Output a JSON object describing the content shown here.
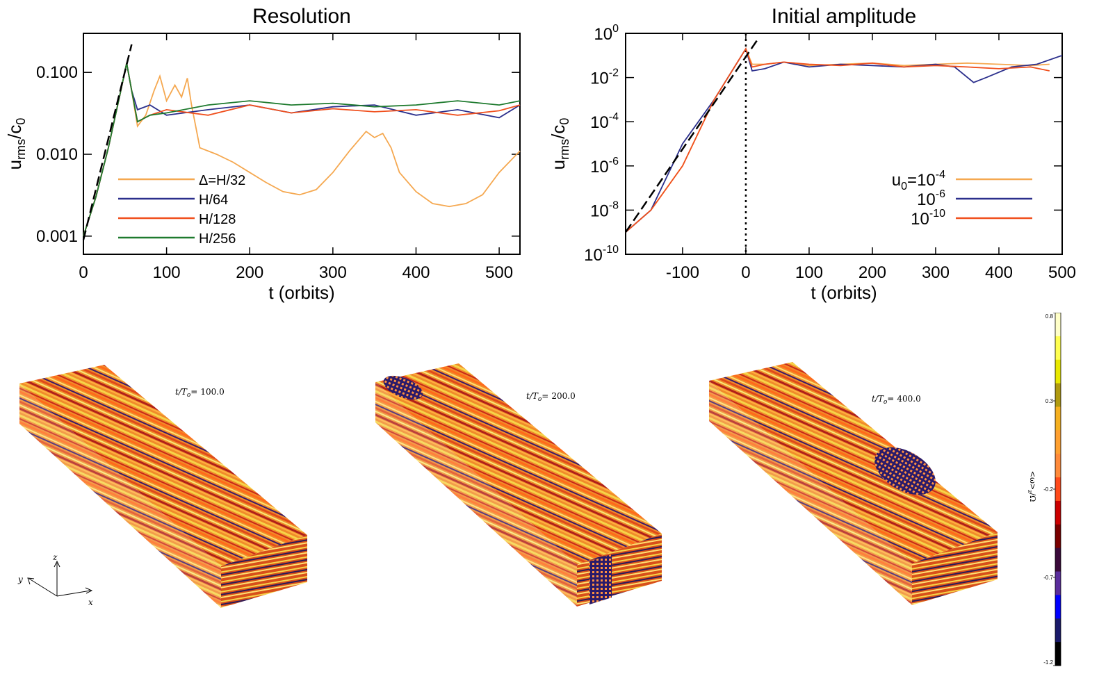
{
  "chart_data": [
    {
      "type": "line",
      "title": "Resolution",
      "xlabel": "t (orbits)",
      "ylabel_main": "u",
      "ylabel_sub": "rms",
      "ylabel_mid": "/c",
      "ylabel_sub2": "0",
      "yscale": "log",
      "xlim": [
        0,
        525
      ],
      "ylim": [
        0.0006,
        0.3
      ],
      "xticks": [
        0,
        100,
        200,
        300,
        400,
        500
      ],
      "xtick_labels": [
        "0",
        "100",
        "200",
        "300",
        "400",
        "500"
      ],
      "yticks": [
        0.001,
        0.01,
        0.1
      ],
      "ytick_labels": [
        "0.001",
        "0.010",
        "0.100"
      ],
      "legend_position": "lower-left",
      "series": [
        {
          "name": "Δ=H/32",
          "color": "#f5a850",
          "x": [
            0,
            15,
            30,
            45,
            52,
            58,
            65,
            75,
            85,
            92,
            100,
            110,
            118,
            125,
            130,
            135,
            140,
            160,
            180,
            200,
            220,
            240,
            260,
            280,
            300,
            320,
            340,
            350,
            360,
            370,
            380,
            400,
            420,
            440,
            460,
            480,
            500,
            525
          ],
          "y": [
            0.001,
            0.003,
            0.012,
            0.06,
            0.13,
            0.06,
            0.022,
            0.03,
            0.06,
            0.09,
            0.045,
            0.07,
            0.05,
            0.085,
            0.04,
            0.022,
            0.012,
            0.01,
            0.008,
            0.006,
            0.0045,
            0.0035,
            0.0032,
            0.0037,
            0.006,
            0.011,
            0.019,
            0.016,
            0.018,
            0.012,
            0.006,
            0.0035,
            0.0025,
            0.0023,
            0.0025,
            0.0032,
            0.006,
            0.011
          ]
        },
        {
          "name": "H/64",
          "color": "#2b2f8c",
          "x": [
            0,
            15,
            30,
            45,
            52,
            58,
            65,
            80,
            100,
            150,
            200,
            250,
            300,
            350,
            400,
            450,
            500,
            525
          ],
          "y": [
            0.001,
            0.003,
            0.012,
            0.06,
            0.13,
            0.06,
            0.035,
            0.04,
            0.03,
            0.035,
            0.04,
            0.032,
            0.038,
            0.04,
            0.03,
            0.035,
            0.028,
            0.04
          ]
        },
        {
          "name": "H/128",
          "color": "#f0501e",
          "x": [
            0,
            15,
            30,
            45,
            52,
            58,
            65,
            80,
            100,
            150,
            200,
            250,
            300,
            350,
            400,
            450,
            500,
            525
          ],
          "y": [
            0.001,
            0.003,
            0.012,
            0.06,
            0.13,
            0.06,
            0.025,
            0.03,
            0.035,
            0.03,
            0.04,
            0.032,
            0.036,
            0.033,
            0.035,
            0.03,
            0.034,
            0.04
          ]
        },
        {
          "name": "H/256",
          "color": "#1e7a2e",
          "x": [
            0,
            15,
            30,
            45,
            52,
            58,
            65,
            80,
            100,
            150,
            200,
            250,
            300,
            350,
            400,
            450,
            500,
            525
          ],
          "y": [
            0.001,
            0.003,
            0.012,
            0.06,
            0.13,
            0.06,
            0.025,
            0.03,
            0.032,
            0.04,
            0.045,
            0.04,
            0.042,
            0.038,
            0.04,
            0.045,
            0.04,
            0.045
          ]
        }
      ],
      "dashed_line": {
        "x": [
          0,
          58
        ],
        "y": [
          0.0009,
          0.22
        ]
      }
    },
    {
      "type": "line",
      "title": "Initial amplitude",
      "xlabel": "t (orbits)",
      "ylabel_main": "u",
      "ylabel_sub": "rms",
      "ylabel_mid": "/c",
      "ylabel_sub2": "0",
      "yscale": "log",
      "xlim": [
        -190,
        500
      ],
      "ylim": [
        1e-10,
        1
      ],
      "xticks": [
        -100,
        0,
        100,
        200,
        300,
        400,
        500
      ],
      "xtick_labels": [
        "-100",
        "0",
        "100",
        "200",
        "300",
        "400",
        "500"
      ],
      "yticks_exp": [
        -10,
        -8,
        -6,
        -4,
        -2,
        0
      ],
      "ytick_base": "10",
      "ytick_exps": [
        "-10",
        "-8",
        "-6",
        "-4",
        "-2",
        "0"
      ],
      "vline_x": 0,
      "legend_position": "lower-right",
      "series": [
        {
          "name_base": "u",
          "name_sub": "0",
          "name_mid": "=10",
          "name_exp": "-4",
          "color": "#f5a850",
          "x": [
            -190,
            -150,
            -100,
            -50,
            0,
            10,
            30,
            60,
            100,
            150,
            200,
            250,
            300,
            350,
            400,
            450,
            480
          ],
          "y": [
            1e-09,
            1e-08,
            1e-06,
            0.001,
            0.2,
            0.04,
            0.04,
            0.05,
            0.035,
            0.04,
            0.045,
            0.035,
            0.04,
            0.045,
            0.04,
            0.035,
            0.04
          ]
        },
        {
          "name_base": "",
          "name_sub": "",
          "name_mid": "10",
          "name_exp": "-6",
          "color": "#2b2f8c",
          "x": [
            -190,
            -150,
            -100,
            -50,
            0,
            10,
            30,
            60,
            100,
            150,
            200,
            250,
            300,
            330,
            360,
            380,
            420,
            460,
            500
          ],
          "y": [
            1e-09,
            1e-08,
            1e-05,
            0.001,
            0.2,
            0.02,
            0.025,
            0.05,
            0.03,
            0.04,
            0.035,
            0.03,
            0.04,
            0.03,
            0.006,
            0.01,
            0.03,
            0.04,
            0.1
          ]
        },
        {
          "name_base": "",
          "name_sub": "",
          "name_mid": "10",
          "name_exp": "-10",
          "color": "#f0501e",
          "x": [
            -190,
            -150,
            -100,
            -50,
            0,
            10,
            30,
            60,
            100,
            150,
            200,
            250,
            300,
            350,
            400,
            450,
            480
          ],
          "y": [
            1e-09,
            1e-08,
            1e-06,
            0.001,
            0.2,
            0.03,
            0.04,
            0.05,
            0.04,
            0.035,
            0.045,
            0.03,
            0.035,
            0.03,
            0.025,
            0.03,
            0.02
          ]
        }
      ],
      "dashed_line": {
        "x": [
          -190,
          20
        ],
        "y": [
          1e-09,
          0.6
        ]
      }
    }
  ],
  "panels": [
    {
      "label_base": "t/T",
      "label_sub": "o",
      "label_eq": "=",
      "label_value": "100.0"
    },
    {
      "label_base": "t/T",
      "label_sub": "o",
      "label_eq": "=",
      "label_value": "200.0"
    },
    {
      "label_base": "t/T",
      "label_sub": "o",
      "label_eq": "=",
      "label_value": "400.0"
    }
  ],
  "axes_glyph": {
    "z": "z",
    "y": "y",
    "x": "x"
  },
  "colorbar": {
    "label": "<ω>",
    "label_sub": "z",
    "label_tail": "/Ω",
    "ticks": [
      "0.8",
      "0.3",
      "-0.2",
      "-0.7",
      "-1.2"
    ],
    "tick_values": [
      0.8,
      0.3,
      -0.2,
      -0.7,
      -1.2
    ],
    "range": [
      -1.2,
      0.8
    ],
    "colors": [
      "#000000",
      "#1a1a6a",
      "#0000ff",
      "#5a2d9c",
      "#3a0a3a",
      "#7a0000",
      "#cc0000",
      "#ff4a1a",
      "#ff8a3a",
      "#ffa030",
      "#f5b020",
      "#b09a10",
      "#e8e800",
      "#ffff50",
      "#ffffc8"
    ]
  }
}
